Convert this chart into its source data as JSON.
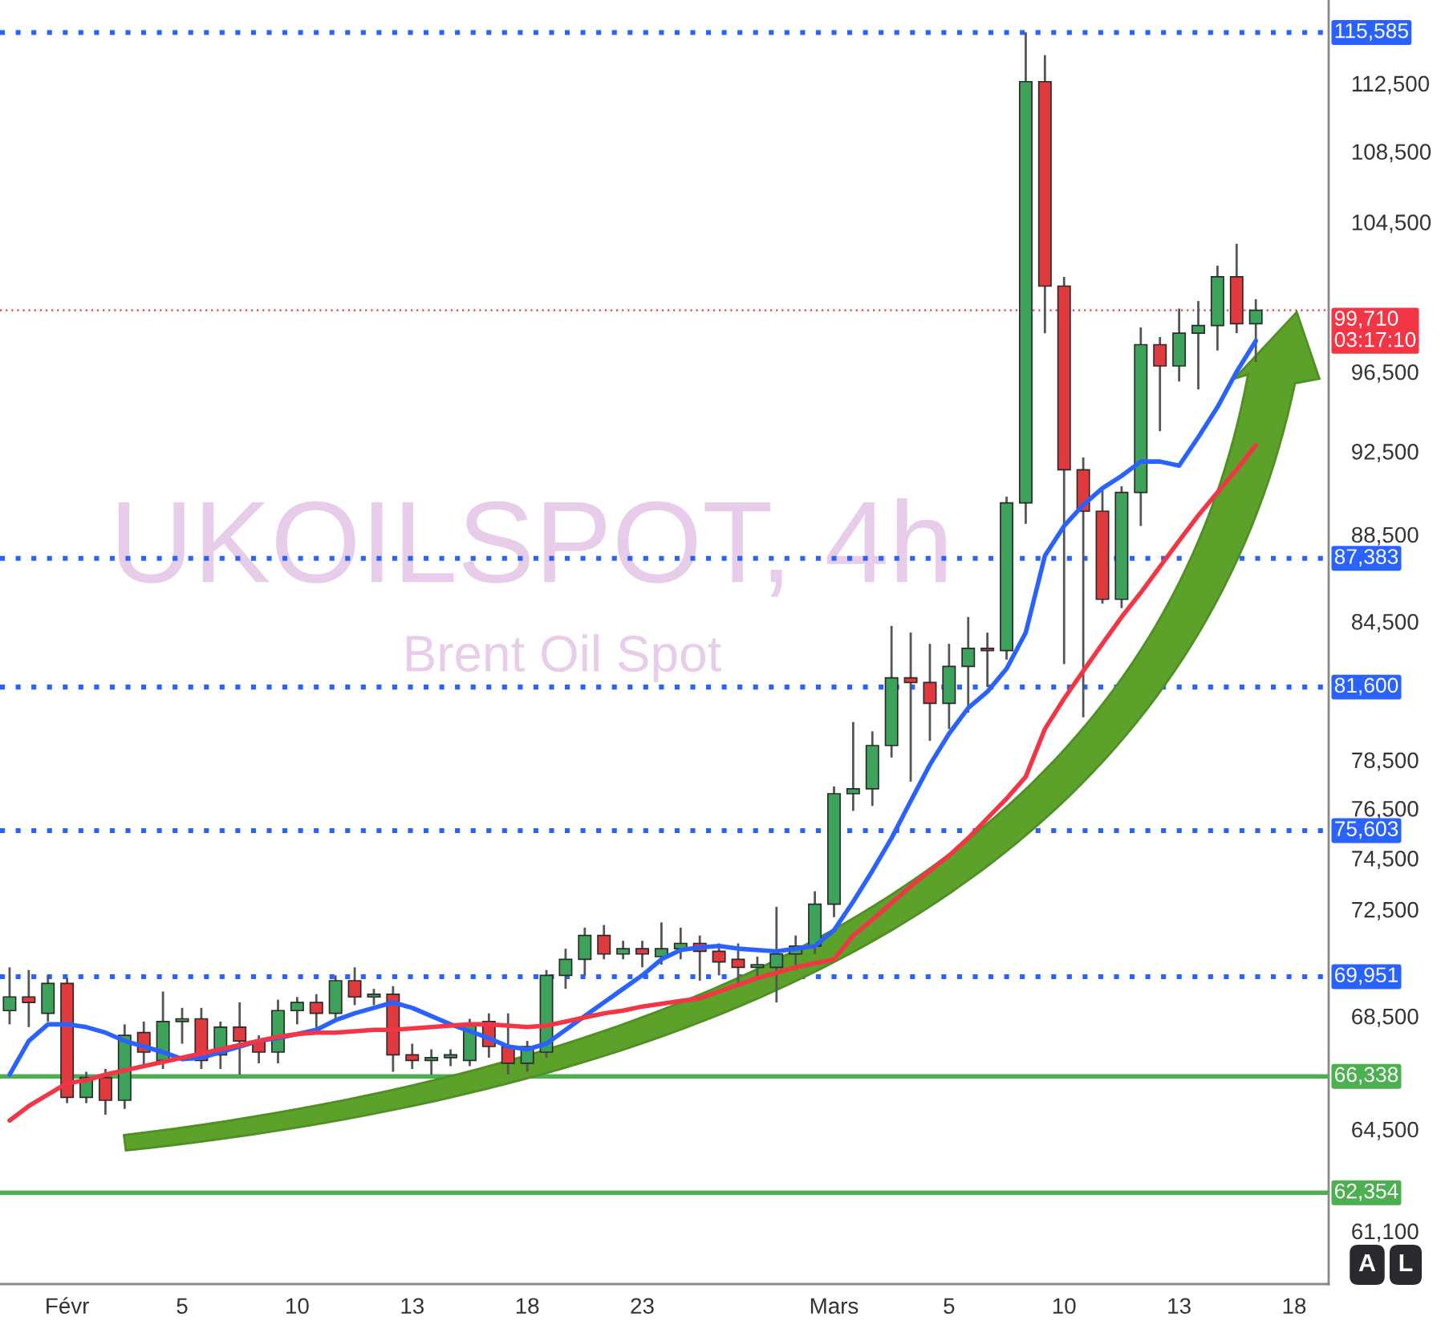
{
  "chart_data": {
    "type": "candlestick",
    "title": "UKOILSPOT, 4h",
    "subtitle": "Brent Oil Spot",
    "categories": [
      null,
      null,
      null,
      "Févr",
      null,
      null,
      null,
      null,
      null,
      "5",
      null,
      null,
      null,
      null,
      null,
      "10",
      null,
      null,
      null,
      null,
      null,
      "13",
      null,
      null,
      null,
      null,
      null,
      "18",
      null,
      null,
      null,
      null,
      null,
      "23",
      null,
      null,
      null,
      null,
      null,
      null,
      null,
      null,
      null,
      "Mars",
      null,
      null,
      null,
      null,
      null,
      "5",
      null,
      null,
      null,
      null,
      null,
      "10",
      null,
      null,
      null,
      null,
      null,
      "13",
      null,
      null,
      null,
      null,
      null,
      "18"
    ],
    "ohlc": [
      [
        68700,
        70300,
        68200,
        69200
      ],
      [
        69200,
        70200,
        68100,
        69000
      ],
      [
        68600,
        70000,
        68300,
        69700
      ],
      [
        69700,
        69900,
        65400,
        65600
      ],
      [
        65600,
        66500,
        65400,
        66300
      ],
      [
        66300,
        66600,
        65000,
        65500
      ],
      [
        65500,
        68200,
        65200,
        67800
      ],
      [
        67900,
        68300,
        66700,
        67200
      ],
      [
        66900,
        69400,
        66600,
        68300
      ],
      [
        68300,
        68800,
        67500,
        68400
      ],
      [
        68400,
        68800,
        66600,
        66900
      ],
      [
        67100,
        68300,
        66600,
        68100
      ],
      [
        68100,
        69000,
        66400,
        67600
      ],
      [
        67600,
        67800,
        66800,
        67200
      ],
      [
        67200,
        69100,
        66800,
        68700
      ],
      [
        68700,
        69200,
        68200,
        69000
      ],
      [
        69000,
        69300,
        67900,
        68600
      ],
      [
        68600,
        70000,
        68400,
        69800
      ],
      [
        69800,
        70300,
        68900,
        69200
      ],
      [
        69200,
        69500,
        68900,
        69300
      ],
      [
        69300,
        69600,
        66500,
        67100
      ],
      [
        67100,
        67500,
        66600,
        66900
      ],
      [
        66900,
        67300,
        66400,
        67000
      ],
      [
        67000,
        67300,
        66700,
        67100
      ],
      [
        66900,
        68400,
        66700,
        68200
      ],
      [
        68300,
        68600,
        67000,
        67400
      ],
      [
        67400,
        68600,
        66400,
        66800
      ],
      [
        66800,
        67600,
        66500,
        67400
      ],
      [
        67200,
        70200,
        67000,
        70000
      ],
      [
        70000,
        71000,
        69500,
        70600
      ],
      [
        70600,
        71800,
        70000,
        71500
      ],
      [
        71500,
        71900,
        70600,
        70800
      ],
      [
        70800,
        71300,
        70600,
        71000
      ],
      [
        71000,
        71300,
        70300,
        70800
      ],
      [
        70700,
        72000,
        70400,
        71000
      ],
      [
        71000,
        71800,
        70600,
        71200
      ],
      [
        71200,
        71500,
        69800,
        70900
      ],
      [
        70900,
        71200,
        70000,
        70500
      ],
      [
        70600,
        71200,
        69600,
        70300
      ],
      [
        70300,
        70700,
        69900,
        70400
      ],
      [
        70300,
        72600,
        69000,
        70800
      ],
      [
        70800,
        71500,
        70200,
        71100
      ],
      [
        71100,
        73200,
        70800,
        72700
      ],
      [
        72700,
        77400,
        72200,
        77100
      ],
      [
        77100,
        80100,
        76400,
        77300
      ],
      [
        77300,
        79700,
        76600,
        79100
      ],
      [
        79100,
        84300,
        78600,
        82000
      ],
      [
        82000,
        84000,
        77600,
        81800
      ],
      [
        81800,
        83500,
        79300,
        80900
      ],
      [
        80900,
        83500,
        79800,
        82500
      ],
      [
        82500,
        84700,
        80500,
        83300
      ],
      [
        83300,
        84000,
        81600,
        83200
      ],
      [
        83200,
        90300,
        82800,
        90000
      ],
      [
        90000,
        115600,
        89000,
        112600
      ],
      [
        112600,
        114200,
        98500,
        101000
      ],
      [
        101000,
        101500,
        82600,
        91600
      ],
      [
        91600,
        92200,
        80300,
        89600
      ],
      [
        89600,
        90600,
        85300,
        85500
      ],
      [
        85500,
        90800,
        85100,
        90500
      ],
      [
        90500,
        98800,
        88900,
        97900
      ],
      [
        97900,
        98300,
        93500,
        96800
      ],
      [
        96800,
        99800,
        96000,
        98500
      ],
      [
        98500,
        100200,
        95600,
        98900
      ],
      [
        98900,
        102100,
        97600,
        101500
      ],
      [
        101500,
        103300,
        98500,
        99000
      ],
      [
        99000,
        100300,
        97000,
        99710
      ],
      null,
      null
    ],
    "colors": [
      "#3da35a",
      "#e0393e",
      "#3da35a",
      "#e0393e",
      "#3da35a",
      "#e0393e",
      "#3da35a",
      "#e0393e",
      "#3da35a",
      "#3da35a",
      "#e0393e",
      "#3da35a",
      "#e0393e",
      "#e0393e",
      "#3da35a",
      "#3da35a",
      "#e0393e",
      "#3da35a",
      "#e0393e",
      "#3da35a",
      "#e0393e",
      "#e0393e",
      "#3da35a",
      "#3da35a",
      "#3da35a",
      "#e0393e",
      "#e0393e",
      "#3da35a",
      "#3da35a",
      "#3da35a",
      "#3da35a",
      "#e0393e",
      "#3da35a",
      "#e0393e",
      "#3da35a",
      "#3da35a",
      "#e0393e",
      "#e0393e",
      "#e0393e",
      "#3da35a",
      "#3da35a",
      "#3da35a",
      "#3da35a",
      "#3da35a",
      "#3da35a",
      "#3da35a",
      "#3da35a",
      "#e0393e",
      "#e0393e",
      "#3da35a",
      "#3da35a",
      "#e0393e",
      "#3da35a",
      "#3da35a",
      "#e0393e",
      "#e0393e",
      "#e0393e",
      "#e0393e",
      "#3da35a",
      "#3da35a",
      "#e0393e",
      "#3da35a",
      "#3da35a",
      "#3da35a",
      "#e0393e",
      "#3da35a",
      null,
      null
    ],
    "series": [
      {
        "type": "line",
        "color": "#2962ff",
        "values": [
          66400,
          67600,
          68200,
          68200,
          68100,
          67900,
          67600,
          67400,
          67200,
          66950,
          67000,
          67200,
          67400,
          67600,
          67700,
          67850,
          68000,
          68350,
          68600,
          68800,
          69000,
          68800,
          68500,
          68200,
          67950,
          67700,
          67400,
          67300,
          67500,
          68000,
          68500,
          69000,
          69500,
          70000,
          70600,
          70950,
          71050,
          71100,
          71000,
          70950,
          70900,
          71000,
          71100,
          71700,
          72800,
          74000,
          75300,
          76800,
          78300,
          79600,
          80700,
          81400,
          82400,
          84000,
          87500,
          88900,
          89900,
          90700,
          91300,
          92000,
          92000,
          91800,
          93200,
          94700,
          96500,
          98100,
          null,
          null
        ]
      },
      {
        "type": "line",
        "color": "#f23645",
        "values": [
          64800,
          65300,
          65700,
          66100,
          66200,
          66400,
          66550,
          66700,
          66850,
          67000,
          67150,
          67300,
          67450,
          67600,
          67750,
          67850,
          67900,
          67900,
          67950,
          68000,
          68000,
          68050,
          68100,
          68150,
          68200,
          68200,
          68150,
          68100,
          68150,
          68300,
          68450,
          68600,
          68700,
          68850,
          68950,
          69050,
          69150,
          69400,
          69650,
          69900,
          70100,
          70300,
          70450,
          70600,
          71500,
          72100,
          72750,
          73400,
          74000,
          74600,
          75300,
          76100,
          76900,
          77800,
          79800,
          81100,
          82300,
          83500,
          84700,
          85800,
          87000,
          88200,
          89400,
          90500,
          91600,
          92800,
          null,
          null
        ]
      }
    ],
    "log": true,
    "ylim": [
      59400,
      117600
    ],
    "yticks": [
      {
        "value": 61100,
        "label": "61,100"
      },
      {
        "value": 64500,
        "label": "64,500"
      },
      {
        "value": 68500,
        "label": "68,500"
      },
      {
        "value": 72500,
        "label": "72,500"
      },
      {
        "value": 74500,
        "label": "74,500"
      },
      {
        "value": 76500,
        "label": "76,500"
      },
      {
        "value": 78500,
        "label": "78,500"
      },
      {
        "value": 84500,
        "label": "84,500"
      },
      {
        "value": 88500,
        "label": "88,500"
      },
      {
        "value": 92500,
        "label": "92,500"
      },
      {
        "value": 96500,
        "label": "96,500"
      },
      {
        "value": 104500,
        "label": "104,500"
      },
      {
        "value": 108500,
        "label": "108,500"
      },
      {
        "value": 112500,
        "label": "112,500"
      }
    ],
    "ref_lines": [
      {
        "axis": "y",
        "value": 115585,
        "label": "115,585",
        "color": "#2962ff",
        "line_style": "dotted"
      },
      {
        "axis": "y",
        "value": 99710,
        "label": "99,710\n03:17:10",
        "color": "#f23645",
        "line_style": "dotted"
      },
      {
        "axis": "y",
        "value": 87383,
        "label": "87,383",
        "color": "#2962ff",
        "line_style": "dotted"
      },
      {
        "axis": "y",
        "value": 81600,
        "label": "81,600",
        "color": "#2962ff",
        "line_style": "dotted"
      },
      {
        "axis": "y",
        "value": 75603,
        "label": "75,603",
        "color": "#2962ff",
        "line_style": "dotted"
      },
      {
        "axis": "y",
        "value": 69951,
        "label": "69,951",
        "color": "#2962ff",
        "line_style": "dotted"
      },
      {
        "axis": "y",
        "value": 66338,
        "label": "66,338",
        "color": "#4caf50",
        "line_style": "solid"
      },
      {
        "axis": "y",
        "value": 62354,
        "label": "62,354",
        "color": "#4caf50",
        "line_style": "solid"
      }
    ],
    "annotations": [
      "A",
      "L"
    ],
    "grid": false
  }
}
